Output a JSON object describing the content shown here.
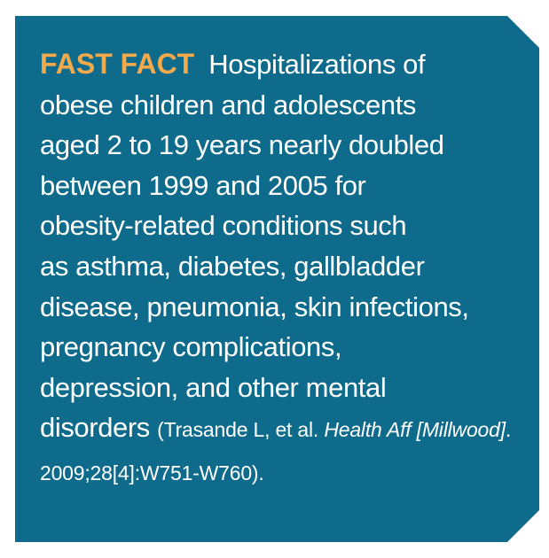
{
  "label": "FAST FACT",
  "body_lines": [
    "Hospitalizations of",
    "obese children and adolescents",
    "aged 2 to 19 years nearly doubled",
    "between 1999 and 2005 for",
    "obesity-related conditions such",
    "as asthma, diabetes, gallbladder",
    "disease, pneumonia, skin infections,",
    "pregnancy complications,",
    "depression, and other mental",
    "disorders"
  ],
  "citation": {
    "prefix": "(Trasande L, et al.",
    "journal": "Health Aff [Millwood]",
    "suffix": ". 2009;28[4]:W751-W760)."
  }
}
